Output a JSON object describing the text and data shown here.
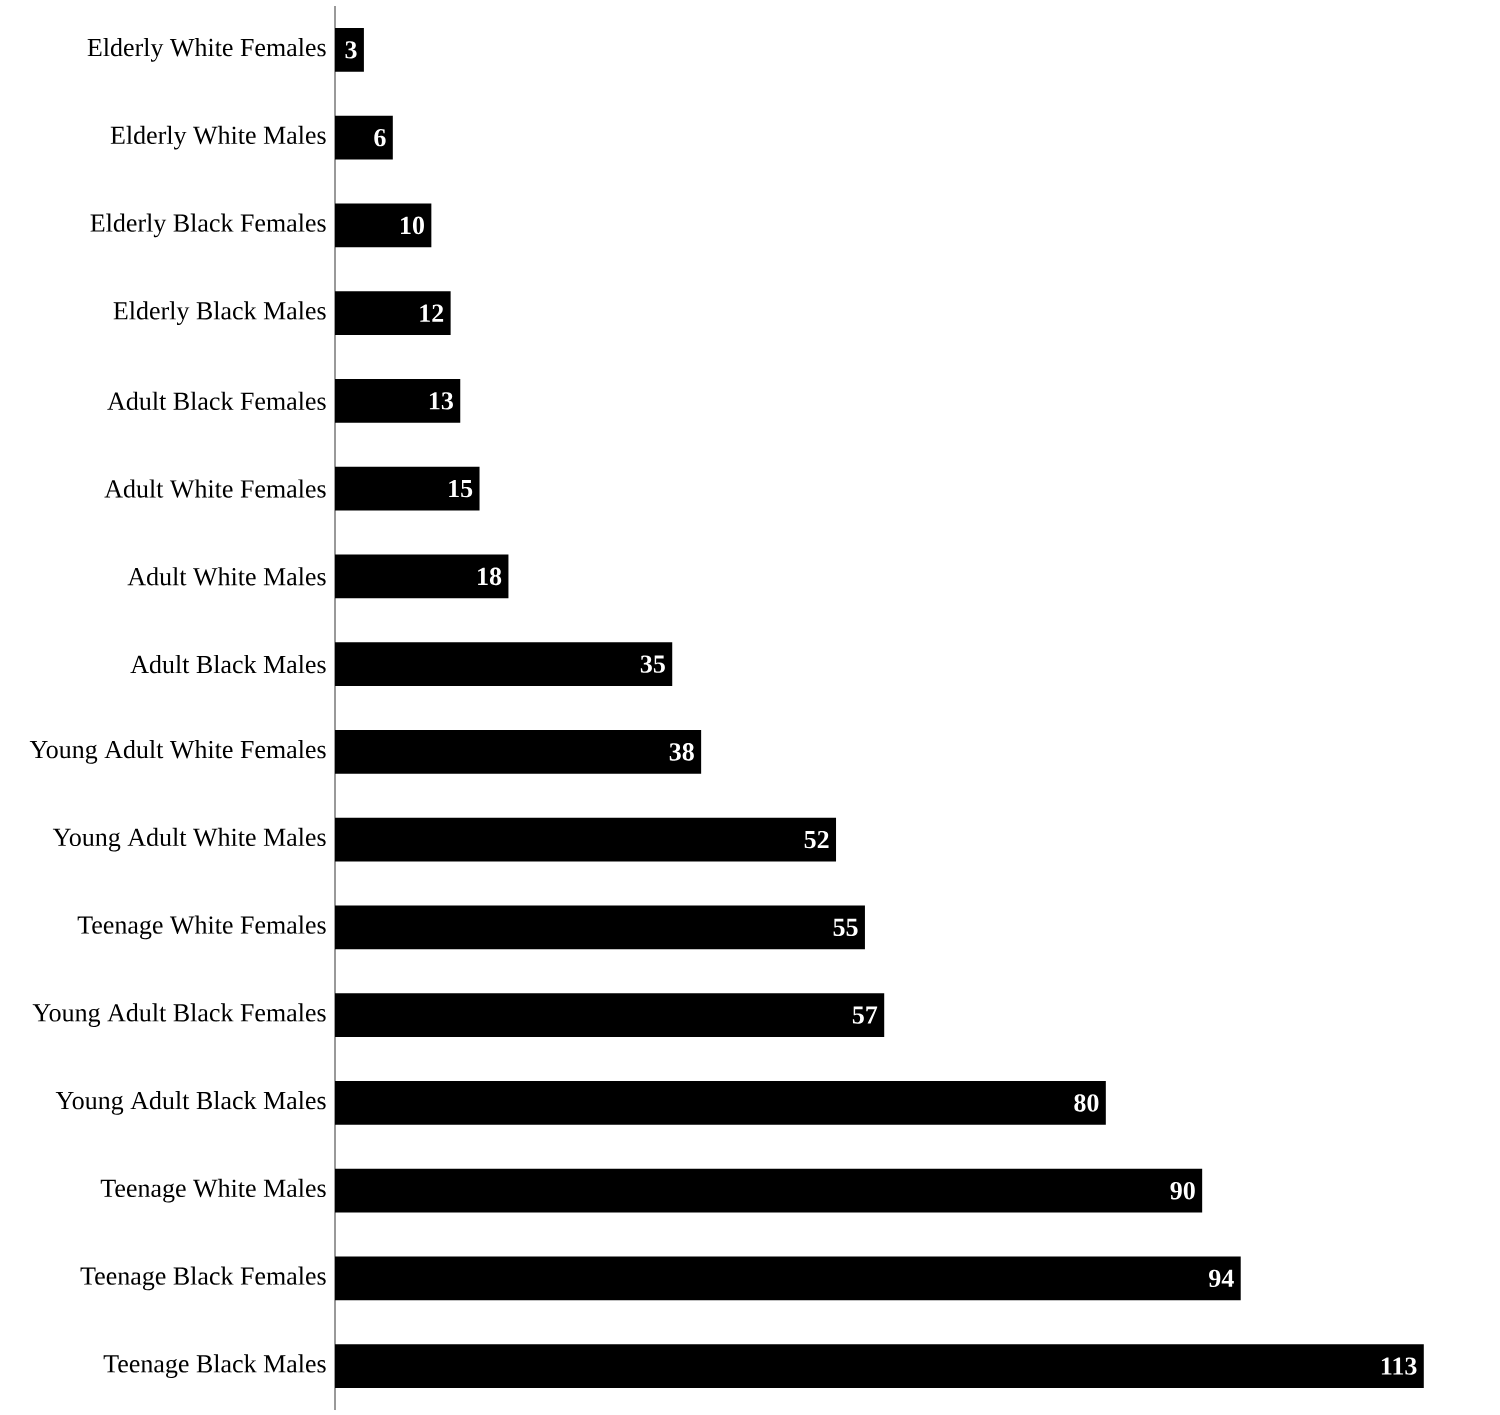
{
  "chart_data": {
    "type": "bar",
    "orientation": "horizontal",
    "categories": [
      "Elderly White Females",
      "Elderly White Males",
      "Elderly Black Females",
      "Elderly Black Males",
      "Adult Black Females",
      "Adult White Females",
      "Adult White Males",
      "Adult Black Males",
      "Young Adult White Females",
      "Young Adult White Males",
      "Teenage White Females",
      "Young Adult Black Females",
      "Young Adult Black Males",
      "Teenage White Males",
      "Teenage Black Females",
      "Teenage Black Males"
    ],
    "values": [
      3,
      6,
      10,
      12,
      13,
      15,
      18,
      35,
      38,
      52,
      55,
      57,
      80,
      90,
      94,
      113
    ],
    "color": "#000000",
    "data_labels": true
  }
}
